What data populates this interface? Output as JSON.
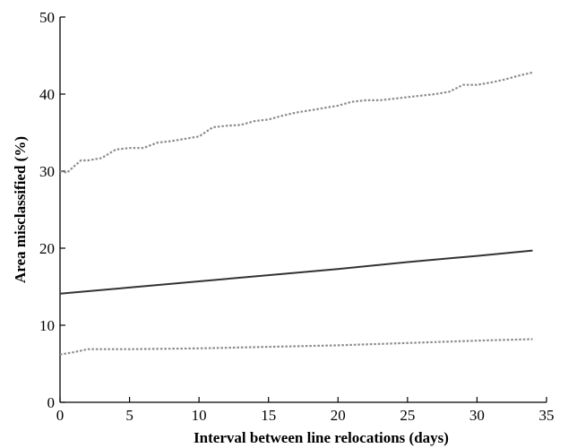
{
  "chart_data": {
    "type": "line",
    "title": "",
    "xlabel": "Interval between line relocations (days)",
    "ylabel": "Area misclassified (%)",
    "xlim": [
      0,
      35
    ],
    "ylim": [
      0,
      50
    ],
    "x_ticks": [
      "0",
      "5",
      "10",
      "15",
      "20",
      "25",
      "30",
      "35"
    ],
    "y_ticks": [
      "0",
      "10",
      "20",
      "30",
      "40",
      "50"
    ],
    "grid": false,
    "legend": "none",
    "series": [
      {
        "style": "dotted",
        "color": "#8c8c8c",
        "x": [
          0,
          0.5,
          1,
          1.5,
          2,
          3,
          4,
          5,
          6,
          7,
          8,
          9,
          10,
          11,
          12,
          13,
          14,
          15,
          16,
          17,
          18,
          19,
          20,
          21,
          22,
          23,
          24,
          25,
          26,
          27,
          28,
          29,
          30,
          31,
          32,
          33,
          34
        ],
        "y": [
          30.0,
          29.8,
          30.6,
          31.4,
          31.4,
          31.7,
          32.8,
          33.0,
          33.0,
          33.7,
          33.9,
          34.2,
          34.5,
          35.7,
          35.9,
          36.0,
          36.5,
          36.7,
          37.2,
          37.6,
          37.9,
          38.2,
          38.5,
          39.0,
          39.2,
          39.2,
          39.4,
          39.6,
          39.8,
          40.0,
          40.3,
          41.2,
          41.2,
          41.5,
          41.9,
          42.4,
          42.8
        ]
      },
      {
        "style": "solid",
        "color": "#333333",
        "x": [
          0,
          5,
          10,
          15,
          20,
          25,
          30,
          34
        ],
        "y": [
          14.1,
          14.9,
          15.7,
          16.5,
          17.3,
          18.2,
          19.0,
          19.7
        ]
      },
      {
        "style": "dotted",
        "color": "#8c8c8c",
        "x": [
          0,
          1,
          2,
          5,
          10,
          15,
          20,
          25,
          30,
          34
        ],
        "y": [
          6.2,
          6.5,
          6.9,
          6.9,
          7.0,
          7.2,
          7.4,
          7.7,
          8.0,
          8.2
        ]
      }
    ]
  }
}
